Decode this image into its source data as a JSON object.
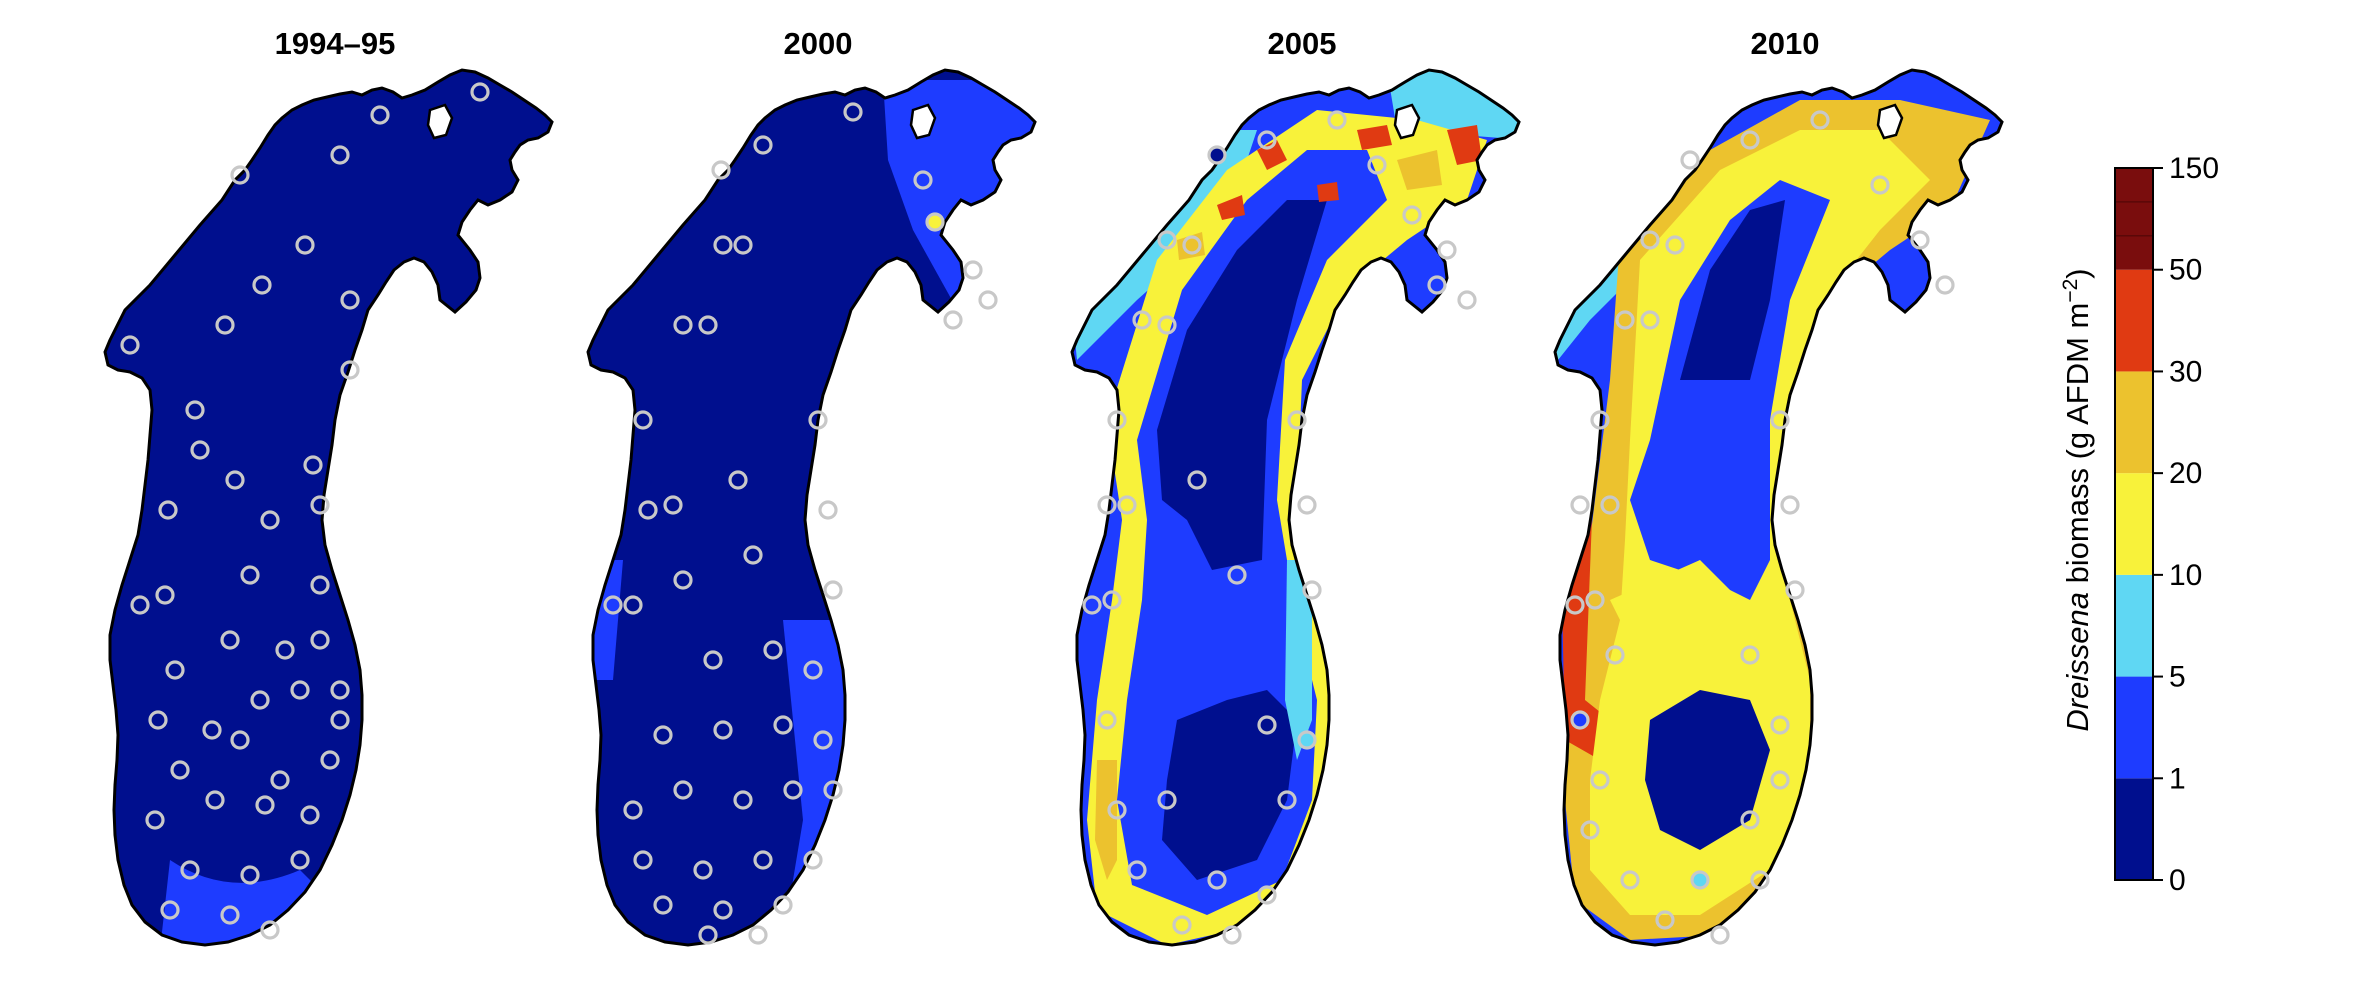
{
  "figure": {
    "panels": [
      {
        "id": "p1994",
        "title": "1994–95"
      },
      {
        "id": "p2000",
        "title": "2000"
      },
      {
        "id": "p2005",
        "title": "2005"
      },
      {
        "id": "p2010",
        "title": "2010"
      }
    ]
  },
  "legend": {
    "title_italic": "Dreissena",
    "title_rest": " biomass (g AFDM m",
    "title_sup": "−2",
    "title_end": ")",
    "bins": [
      {
        "from": "0",
        "to": "1",
        "color": "#000f8e"
      },
      {
        "from": "1",
        "to": "5",
        "color": "#1e3cff"
      },
      {
        "from": "5",
        "to": "10",
        "color": "#5fd7f3"
      },
      {
        "from": "10",
        "to": "20",
        "color": "#f8f23a"
      },
      {
        "from": "20",
        "to": "30",
        "color": "#ecc22e"
      },
      {
        "from": "30",
        "to": "50",
        "color": "#e03a12"
      },
      {
        "from": "50",
        "to": "150",
        "color": "#7a0d0d"
      }
    ],
    "ticks": [
      "0",
      "1",
      "5",
      "10",
      "20",
      "30",
      "50",
      "150"
    ]
  },
  "colors": {
    "outline": "#000000",
    "station_ring": "#c8c8c8"
  }
}
